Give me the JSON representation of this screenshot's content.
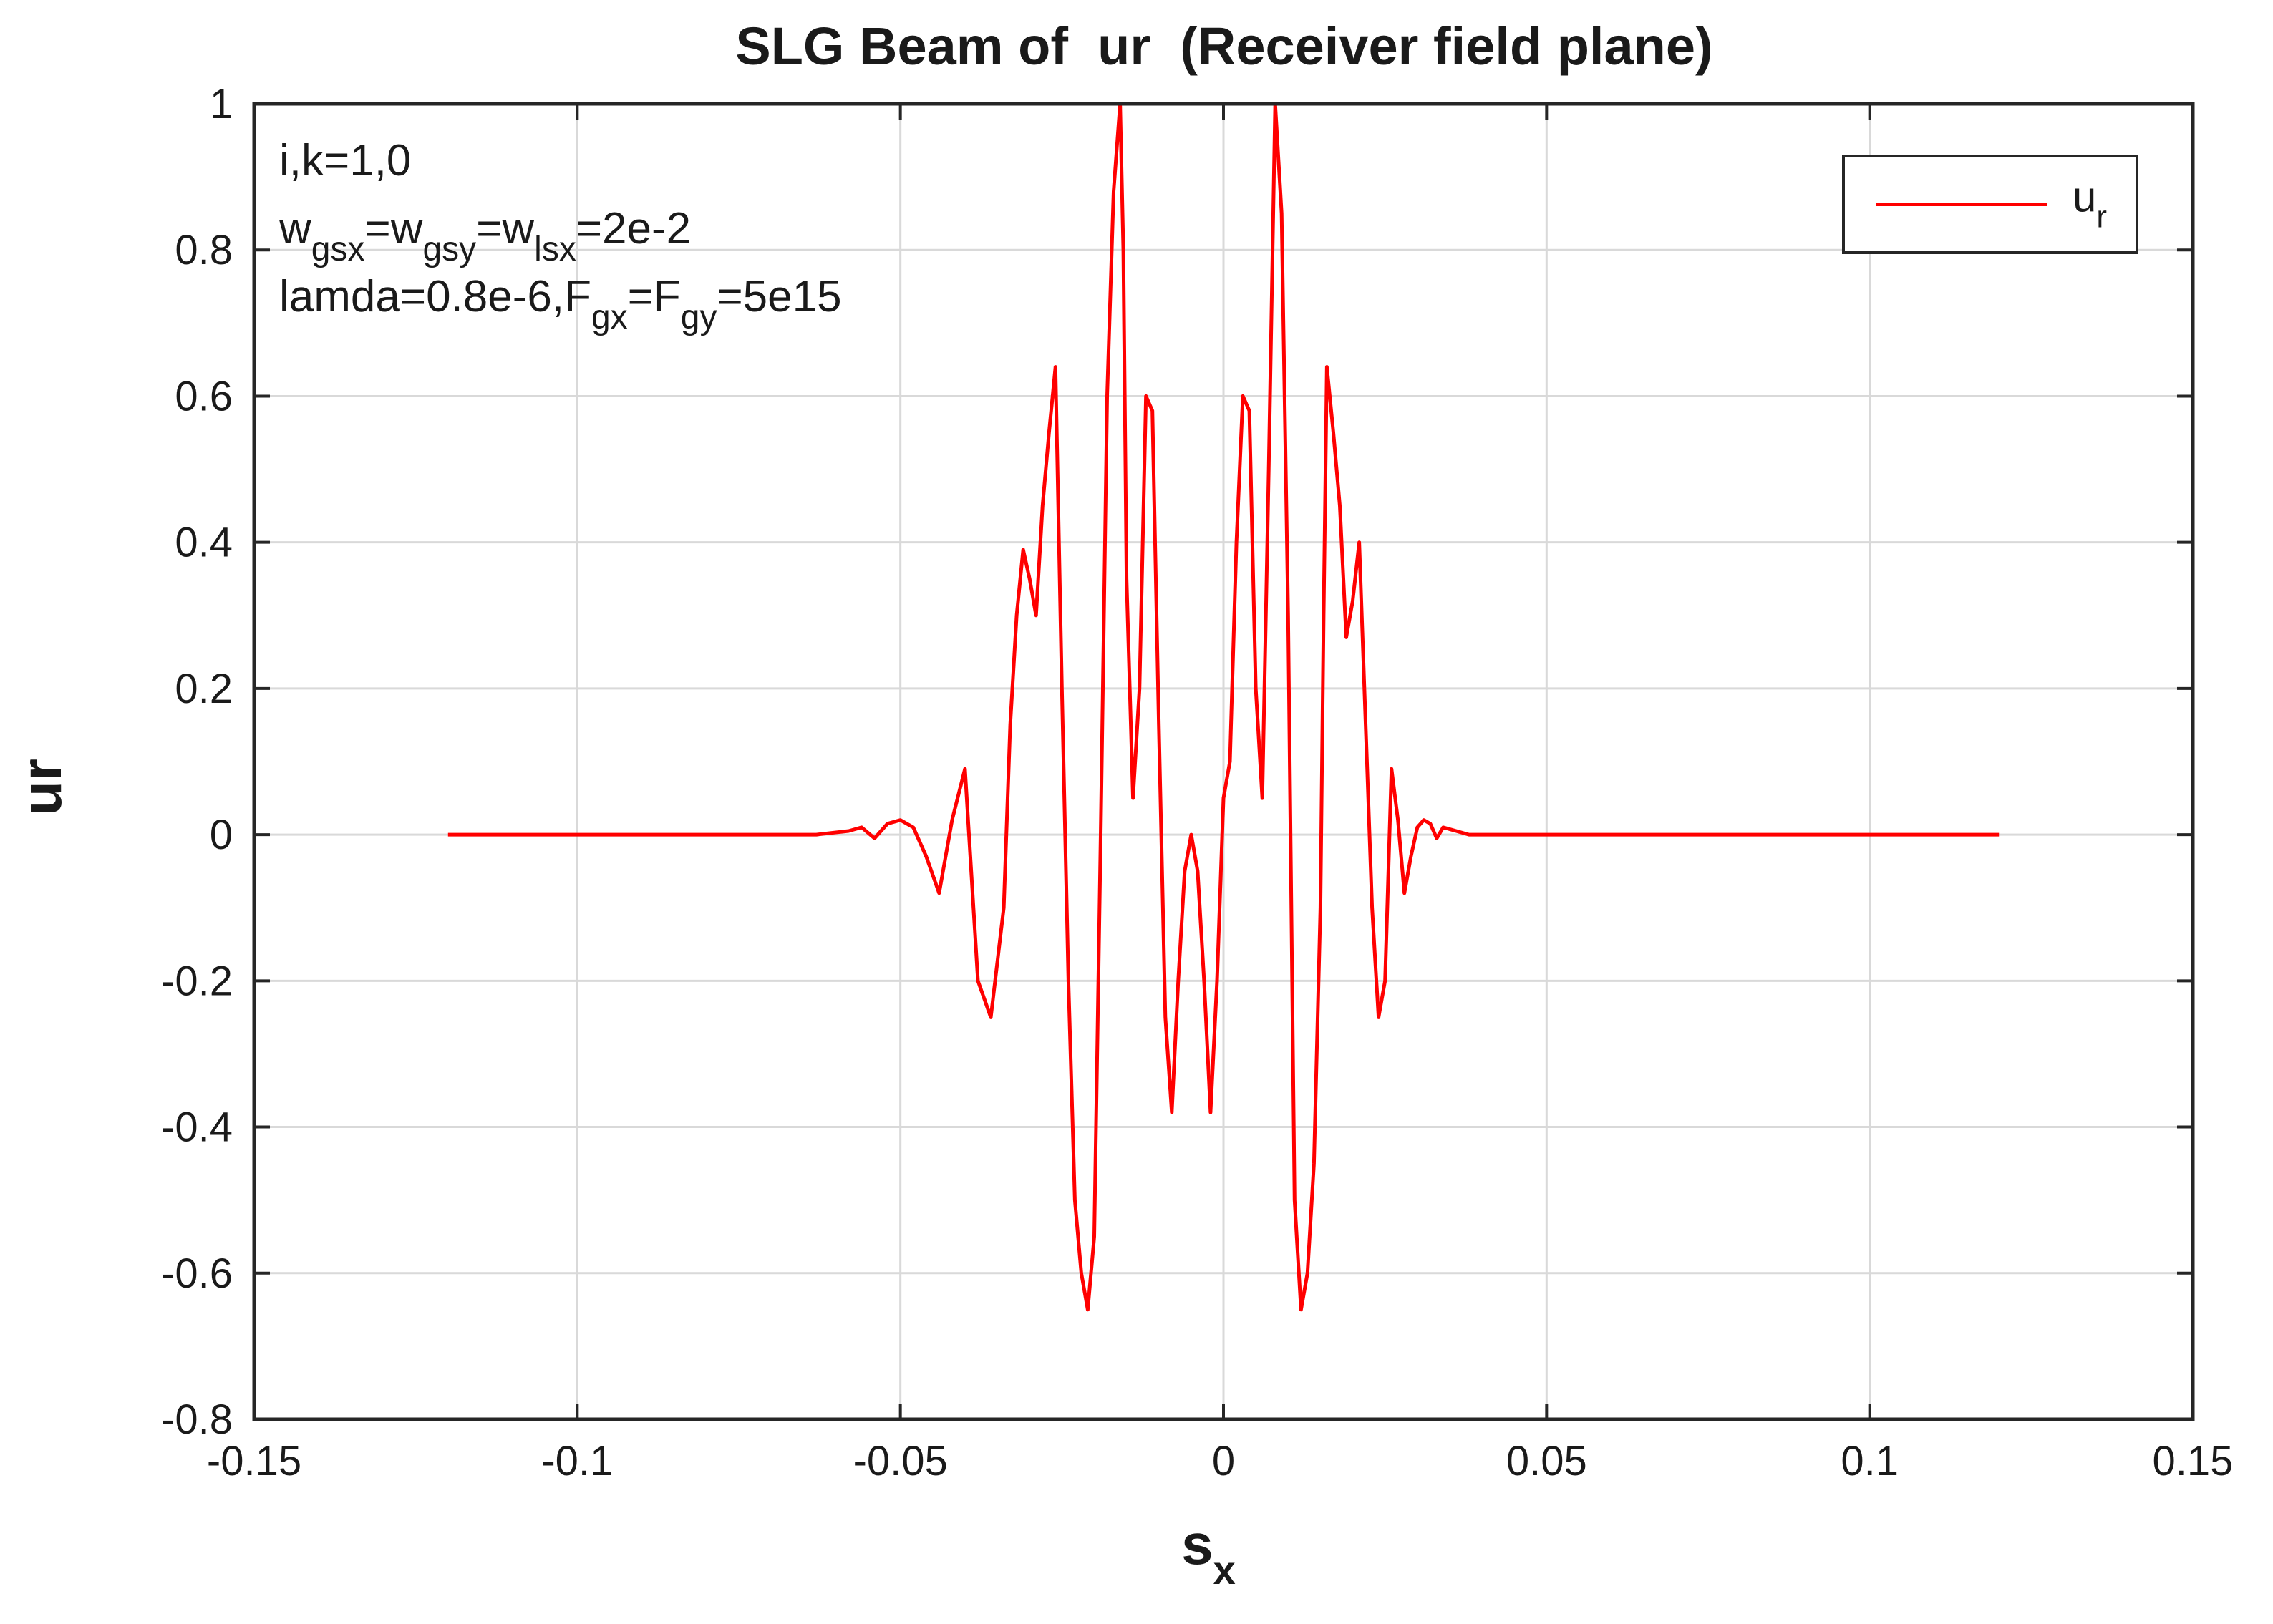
{
  "chart_data": {
    "type": "line",
    "title": "SLG Beam of  ur  (Receiver field plane)",
    "xlabel": {
      "base": "s",
      "sub": "x"
    },
    "ylabel": "ur",
    "xlim": [
      -0.15,
      0.15
    ],
    "ylim": [
      -0.8,
      1
    ],
    "xticks": [
      -0.15,
      -0.1,
      -0.05,
      0,
      0.05,
      0.1,
      0.15
    ],
    "xtick_labels": [
      "-0.15",
      "-0.1",
      "-0.05",
      "0",
      "0.05",
      "0.1",
      "0.15"
    ],
    "yticks": [
      -0.8,
      -0.6,
      -0.4,
      -0.2,
      0,
      0.2,
      0.4,
      0.6,
      0.8,
      1
    ],
    "ytick_labels": [
      "-0.8",
      "-0.6",
      "-0.4",
      "-0.2",
      "0",
      "0.2",
      "0.4",
      "0.6",
      "0.8",
      "1"
    ],
    "grid": true,
    "legend_position": "top-right",
    "color": "#ff0000",
    "annotations": [
      {
        "segments": [
          {
            "t": "i,k=1,0"
          }
        ]
      },
      {
        "segments": [
          {
            "t": "w"
          },
          {
            "t": "gsx",
            "sub": true
          },
          {
            "t": "=w"
          },
          {
            "t": "gsy",
            "sub": true
          },
          {
            "t": "=w"
          },
          {
            "t": "lsx",
            "sub": true
          },
          {
            "t": "=2e-2"
          }
        ]
      },
      {
        "segments": [
          {
            "t": "lamda=0.8e-6,F"
          },
          {
            "t": "gx",
            "sub": true
          },
          {
            "t": "=F"
          },
          {
            "t": "gy",
            "sub": true
          },
          {
            "t": "=5e15"
          }
        ]
      }
    ],
    "series": [
      {
        "name": {
          "base": "u",
          "sub": "r"
        },
        "x": [
          -0.12,
          -0.063,
          -0.058,
          -0.056,
          -0.054,
          -0.052,
          -0.05,
          -0.048,
          -0.046,
          -0.044,
          -0.042,
          -0.04,
          -0.038,
          -0.036,
          -0.034,
          -0.033,
          -0.032,
          -0.031,
          -0.03,
          -0.029,
          -0.028,
          -0.027,
          -0.026,
          -0.025,
          -0.024,
          -0.023,
          -0.022,
          -0.021,
          -0.02,
          -0.019,
          -0.018,
          -0.017,
          -0.016,
          -0.0155,
          -0.015,
          -0.014,
          -0.013,
          -0.012,
          -0.011,
          -0.01,
          -0.009,
          -0.008,
          -0.007,
          -0.006,
          -0.005,
          -0.004,
          -0.003,
          -0.002,
          -0.001,
          0,
          0.001,
          0.002,
          0.003,
          0.004,
          0.005,
          0.006,
          0.007,
          0.008,
          0.009,
          0.01,
          0.011,
          0.012,
          0.013,
          0.014,
          0.015,
          0.0155,
          0.016,
          0.017,
          0.018,
          0.019,
          0.02,
          0.021,
          0.022,
          0.023,
          0.024,
          0.025,
          0.026,
          0.027,
          0.028,
          0.029,
          0.03,
          0.031,
          0.032,
          0.033,
          0.034,
          0.036,
          0.038,
          0.04,
          0.042,
          0.044,
          0.046,
          0.048,
          0.05,
          0.052,
          0.054,
          0.056,
          0.058,
          0.063,
          0.12
        ],
        "y": [
          0,
          0,
          0.005,
          0.01,
          -0.005,
          0.015,
          0.02,
          0.01,
          -0.03,
          -0.08,
          0.02,
          0.09,
          -0.2,
          -0.25,
          -0.1,
          0.15,
          0.3,
          0.39,
          0.35,
          0.3,
          0.45,
          0.55,
          0.64,
          0.2,
          -0.2,
          -0.5,
          -0.6,
          -0.65,
          -0.55,
          0,
          0.6,
          0.88,
          1,
          0.8,
          0.35,
          0.05,
          0.2,
          0.6,
          0.58,
          0.15,
          -0.25,
          -0.38,
          -0.2,
          -0.05,
          0,
          -0.05,
          -0.2,
          -0.38,
          -0.2,
          0.05,
          0.1,
          0.4,
          0.6,
          0.58,
          0.2,
          0.05,
          0.5,
          1,
          0.85,
          0.3,
          -0.5,
          -0.65,
          -0.6,
          -0.45,
          -0.1,
          0.3,
          0.64,
          0.55,
          0.45,
          0.27,
          0.32,
          0.4,
          0.15,
          -0.1,
          -0.25,
          -0.2,
          0.09,
          0.02,
          -0.08,
          -0.03,
          0.01,
          0.02,
          0.015,
          -0.005,
          0.01,
          0.005,
          0,
          0,
          0,
          0,
          0,
          0,
          0,
          0,
          0,
          0,
          0,
          0,
          0
        ]
      }
    ]
  }
}
